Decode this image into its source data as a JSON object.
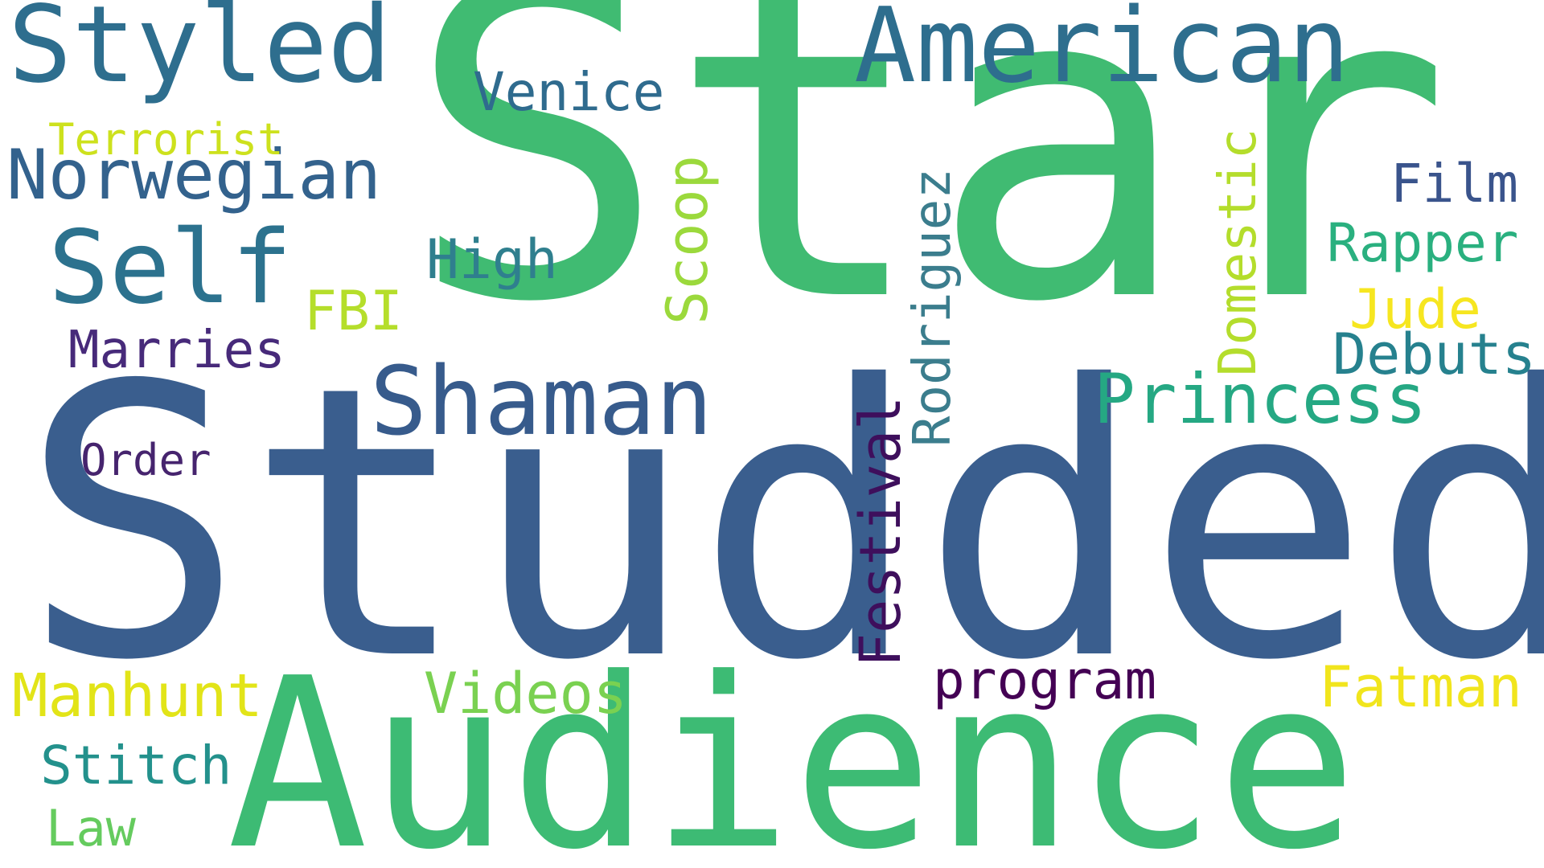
{
  "word_cloud": {
    "words": {
      "star": "Star",
      "studded": "Studded",
      "audience": "Audience",
      "styled": "Styled",
      "american": "American",
      "self": "Self",
      "shaman": "Shaman",
      "norwegian": "Norwegian",
      "princess": "Princess",
      "venice": "Venice",
      "film": "Film",
      "rapper": "Rapper",
      "high": "High",
      "debuts": "Debuts",
      "marries": "Marries",
      "fbi": "FBI",
      "jude": "Jude",
      "order": "Order",
      "terrorist": "Terrorist",
      "manhunt": "Manhunt",
      "videos": "Videos",
      "program": "program",
      "fatman": "Fatman",
      "stitch": "Stitch",
      "law": "Law",
      "rodriguez": "Rodriguez",
      "domestic": "Domestic",
      "festival": "Festival",
      "scoop": "Scoop"
    },
    "orientation": {
      "vertical": [
        "Rodriguez",
        "Domestic",
        "Festival",
        "Scoop"
      ]
    },
    "colors": {
      "star": "#40bb72",
      "studded": "#3a5e8e",
      "audience": "#3dbb74",
      "program": "#440154",
      "fatman": "#f1e51d"
    }
  }
}
